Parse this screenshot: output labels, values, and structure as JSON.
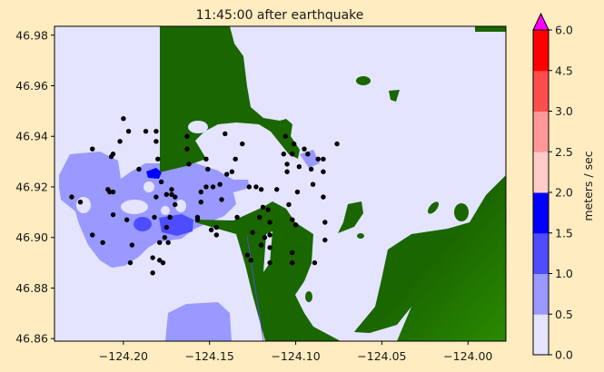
{
  "title": "11:45:00 after earthquake",
  "chart_data": {
    "type": "scatter",
    "title": "11:45:00 after earthquake",
    "xlim": [
      -124.24,
      -123.978
    ],
    "ylim": [
      46.859,
      46.9835
    ],
    "x_ticks": [
      {
        "value": -124.2,
        "label": "−124.20"
      },
      {
        "value": -124.15,
        "label": "−124.15"
      },
      {
        "value": -124.1,
        "label": "−124.10"
      },
      {
        "value": -124.05,
        "label": "−124.05"
      },
      {
        "value": -124.0,
        "label": "−124.00"
      }
    ],
    "y_ticks": [
      {
        "value": 46.86,
        "label": "46.86"
      },
      {
        "value": 46.88,
        "label": "46.88"
      },
      {
        "value": 46.9,
        "label": "46.90"
      },
      {
        "value": 46.92,
        "label": "46.92"
      },
      {
        "value": 46.94,
        "label": "46.94"
      },
      {
        "value": 46.96,
        "label": "46.96"
      },
      {
        "value": 46.98,
        "label": "46.98"
      }
    ],
    "colors": {
      "background": "#ffecc0",
      "water": "#e4e4ff",
      "land": "#1a6600",
      "particle": "#000000"
    },
    "colorbar": {
      "label": "meters / sec",
      "levels": [
        "0.0",
        "0.5",
        "1.0",
        "1.5",
        "2.0",
        "2.5",
        "3.0",
        "4.5",
        "6.0"
      ],
      "colors": [
        "#e4e4ff",
        "#9999ff",
        "#4d4dff",
        "#0000ff",
        "#ffcccc",
        "#ff9999",
        "#ff4d4d",
        "#ff0000"
      ],
      "extend_color": "#ff00ff"
    },
    "particles": [
      [
        -124.2,
        46.947
      ],
      [
        -124.197,
        46.942
      ],
      [
        -124.202,
        46.938
      ],
      [
        -124.187,
        46.942
      ],
      [
        -124.181,
        46.942
      ],
      [
        -124.181,
        46.938
      ],
      [
        -124.18,
        46.931
      ],
      [
        -124.218,
        46.935
      ],
      [
        -124.207,
        46.932
      ],
      [
        -124.206,
        46.933
      ],
      [
        -124.191,
        46.927
      ],
      [
        -124.23,
        46.916
      ],
      [
        -124.225,
        46.914
      ],
      [
        -124.209,
        46.919
      ],
      [
        -124.206,
        46.918
      ],
      [
        -124.208,
        46.918
      ],
      [
        -124.206,
        46.909
      ],
      [
        -124.198,
        46.907
      ],
      [
        -124.218,
        46.901
      ],
      [
        -124.212,
        46.898
      ],
      [
        -124.195,
        46.897
      ],
      [
        -124.196,
        46.89
      ],
      [
        -124.183,
        46.892
      ],
      [
        -124.179,
        46.891
      ],
      [
        -124.177,
        46.89
      ],
      [
        -124.183,
        46.886
      ],
      [
        -124.179,
        46.898
      ],
      [
        -124.176,
        46.9
      ],
      [
        -124.174,
        46.898
      ],
      [
        -124.182,
        46.908
      ],
      [
        -124.175,
        46.904
      ],
      [
        -124.173,
        46.908
      ],
      [
        -124.181,
        46.916
      ],
      [
        -124.178,
        46.922
      ],
      [
        -124.175,
        46.917
      ],
      [
        -124.172,
        46.917
      ],
      [
        -124.172,
        46.919
      ],
      [
        -124.17,
        46.916
      ],
      [
        -124.17,
        46.913
      ],
      [
        -124.163,
        46.94
      ],
      [
        -124.163,
        46.935
      ],
      [
        -124.162,
        46.929
      ],
      [
        -124.152,
        46.931
      ],
      [
        -124.151,
        46.927
      ],
      [
        -124.155,
        46.918
      ],
      [
        -124.155,
        46.914
      ],
      [
        -124.152,
        46.92
      ],
      [
        -124.148,
        46.92
      ],
      [
        -124.144,
        46.921
      ],
      [
        -124.143,
        46.915
      ],
      [
        -124.157,
        46.908
      ],
      [
        -124.157,
        46.907
      ],
      [
        -124.149,
        46.903
      ],
      [
        -124.146,
        46.904
      ],
      [
        -124.146,
        46.901
      ],
      [
        -124.141,
        46.941
      ],
      [
        -124.131,
        46.937
      ],
      [
        -124.135,
        46.931
      ],
      [
        -124.14,
        46.925
      ],
      [
        -124.137,
        46.926
      ],
      [
        -124.134,
        46.908
      ],
      [
        -124.127,
        46.92
      ],
      [
        -124.123,
        46.92
      ],
      [
        -124.12,
        46.919
      ],
      [
        -124.119,
        46.912
      ],
      [
        -124.125,
        46.902
      ],
      [
        -124.126,
        46.891
      ],
      [
        -124.12,
        46.897
      ],
      [
        -124.115,
        46.906
      ],
      [
        -124.115,
        46.901
      ],
      [
        -124.115,
        46.896
      ],
      [
        -124.115,
        46.89
      ],
      [
        -124.111,
        46.919
      ],
      [
        -124.107,
        46.933
      ],
      [
        -124.106,
        46.94
      ],
      [
        -124.105,
        46.926
      ],
      [
        -124.105,
        46.929
      ],
      [
        -124.104,
        46.913
      ],
      [
        -124.102,
        46.933
      ],
      [
        -124.102,
        46.894
      ],
      [
        -124.102,
        46.907
      ],
      [
        -124.102,
        46.89
      ],
      [
        -124.1,
        46.905
      ],
      [
        -124.101,
        46.937
      ],
      [
        -124.099,
        46.918
      ],
      [
        -124.098,
        46.928
      ],
      [
        -124.095,
        46.935
      ],
      [
        -124.093,
        46.933
      ],
      [
        -124.091,
        46.927
      ],
      [
        -124.09,
        46.921
      ],
      [
        -124.089,
        46.89
      ],
      [
        -124.087,
        46.931
      ],
      [
        -124.084,
        46.931
      ],
      [
        -124.084,
        46.926
      ],
      [
        -124.084,
        46.916
      ],
      [
        -124.083,
        46.906
      ],
      [
        -124.083,
        46.899
      ],
      [
        -124.076,
        46.937
      ],
      [
        -124.128,
        46.893
      ],
      [
        -124.118,
        46.9
      ],
      [
        -124.116,
        46.911
      ],
      [
        -124.121,
        46.908
      ]
    ]
  }
}
